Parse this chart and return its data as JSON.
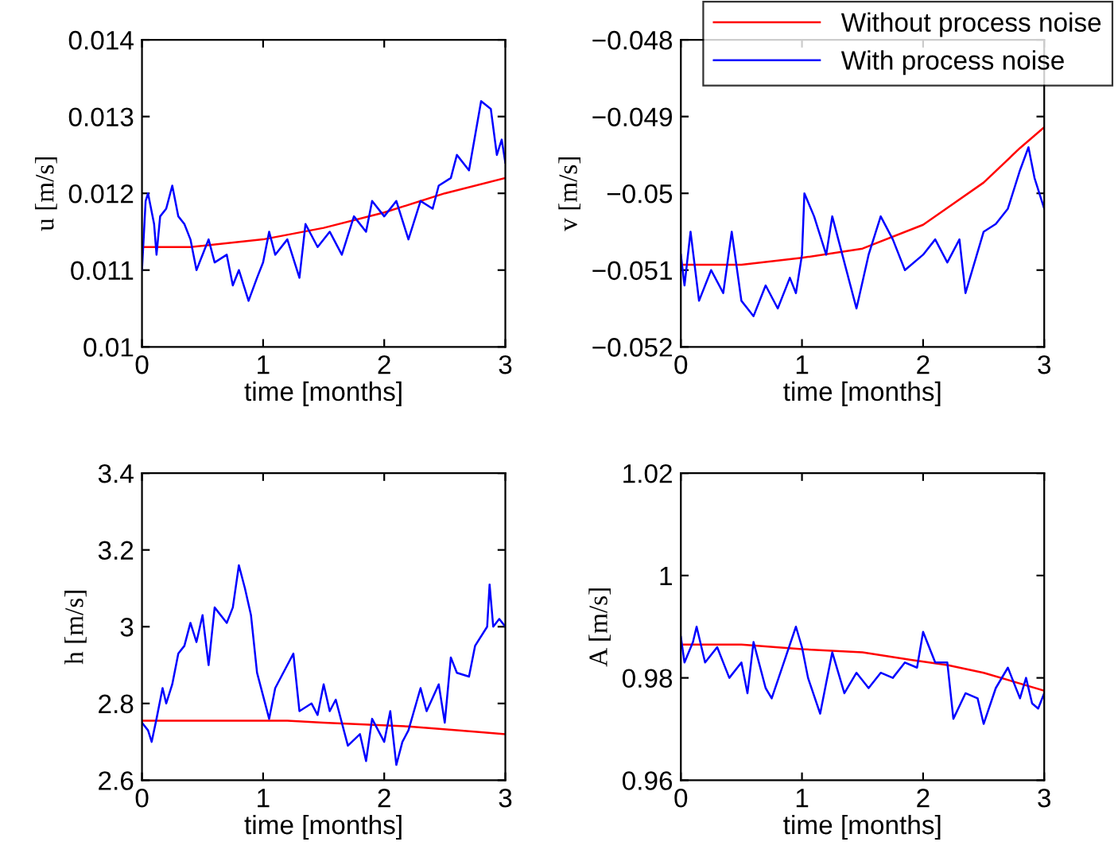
{
  "chart_data": [
    {
      "type": "line",
      "xlabel": "time [months]",
      "ylabel": "u [m/s]",
      "xlim": [
        0,
        3
      ],
      "xticks": [
        0,
        1,
        2,
        3
      ],
      "ylim": [
        0.01,
        0.014
      ],
      "yticks": [
        0.01,
        0.011,
        0.012,
        0.013,
        0.014
      ],
      "grid": false,
      "legend": false,
      "series": [
        {
          "color": "#ff0000",
          "x": [
            0,
            0.4,
            1.0,
            1.5,
            2.0,
            2.5,
            3.0
          ],
          "values": [
            0.0113,
            0.0113,
            0.0114,
            0.01155,
            0.01175,
            0.012,
            0.0122
          ]
        },
        {
          "color": "#0000ff",
          "x": [
            0,
            0.03,
            0.05,
            0.1,
            0.12,
            0.15,
            0.2,
            0.25,
            0.3,
            0.35,
            0.4,
            0.45,
            0.55,
            0.6,
            0.7,
            0.75,
            0.8,
            0.88,
            0.95,
            1.0,
            1.05,
            1.1,
            1.2,
            1.3,
            1.35,
            1.45,
            1.55,
            1.65,
            1.75,
            1.85,
            1.9,
            2.0,
            2.1,
            2.2,
            2.3,
            2.4,
            2.45,
            2.55,
            2.6,
            2.7,
            2.8,
            2.88,
            2.93,
            2.97,
            3.0
          ],
          "values": [
            0.011,
            0.0119,
            0.012,
            0.0116,
            0.0112,
            0.0117,
            0.0118,
            0.0121,
            0.0117,
            0.0116,
            0.0114,
            0.011,
            0.0114,
            0.0111,
            0.0112,
            0.0108,
            0.011,
            0.0106,
            0.0109,
            0.0111,
            0.0115,
            0.0112,
            0.0114,
            0.0109,
            0.0116,
            0.0113,
            0.0115,
            0.0112,
            0.0117,
            0.0115,
            0.0119,
            0.0117,
            0.0119,
            0.0114,
            0.0119,
            0.0118,
            0.0121,
            0.0122,
            0.0125,
            0.0123,
            0.0132,
            0.0131,
            0.0125,
            0.0127,
            0.0124
          ]
        }
      ]
    },
    {
      "type": "line",
      "xlabel": "time [months]",
      "ylabel": "v [m/s]",
      "xlim": [
        0,
        3
      ],
      "xticks": [
        0,
        1,
        2,
        3
      ],
      "ylim": [
        -0.052,
        -0.048
      ],
      "yticks": [
        {
          "value": -0.052,
          "label": "−0.052"
        },
        {
          "value": -0.051,
          "label": "−0.051"
        },
        {
          "value": -0.05,
          "label": "−0.05"
        },
        {
          "value": -0.049,
          "label": "−0.049"
        },
        {
          "value": -0.048,
          "label": "−0.048"
        }
      ],
      "grid": false,
      "legend": "top right",
      "series": [
        {
          "name": "Without process noise",
          "color": "#ff0000",
          "x": [
            0,
            0.5,
            1.0,
            1.5,
            2.0,
            2.5,
            2.8,
            3.0
          ],
          "values": [
            -0.05093,
            -0.05093,
            -0.05084,
            -0.05072,
            -0.05041,
            -0.04986,
            -0.04941,
            -0.04914
          ]
        },
        {
          "name": "With process noise",
          "color": "#0000ff",
          "x": [
            0,
            0.03,
            0.08,
            0.15,
            0.25,
            0.35,
            0.42,
            0.5,
            0.55,
            0.6,
            0.7,
            0.8,
            0.9,
            0.95,
            1.0,
            1.02,
            1.1,
            1.2,
            1.25,
            1.35,
            1.45,
            1.55,
            1.65,
            1.75,
            1.85,
            2.0,
            2.1,
            2.2,
            2.3,
            2.35,
            2.5,
            2.6,
            2.7,
            2.8,
            2.87,
            2.92,
            3.0
          ],
          "values": [
            -0.0508,
            -0.0512,
            -0.0505,
            -0.0514,
            -0.051,
            -0.0513,
            -0.0505,
            -0.0514,
            -0.0515,
            -0.0516,
            -0.0512,
            -0.0515,
            -0.0511,
            -0.0513,
            -0.0508,
            -0.05,
            -0.0503,
            -0.0508,
            -0.0503,
            -0.0509,
            -0.0515,
            -0.0508,
            -0.0503,
            -0.0506,
            -0.051,
            -0.0508,
            -0.0506,
            -0.0509,
            -0.0506,
            -0.0513,
            -0.0505,
            -0.0504,
            -0.0502,
            -0.0497,
            -0.0494,
            -0.0498,
            -0.0502
          ]
        }
      ]
    },
    {
      "type": "line",
      "xlabel": "time [months]",
      "ylabel": "h [m/s]",
      "xlim": [
        0,
        3
      ],
      "xticks": [
        0,
        1,
        2,
        3
      ],
      "ylim": [
        2.6,
        3.4
      ],
      "yticks": [
        2.6,
        2.8,
        3,
        3.2,
        3.4
      ],
      "grid": false,
      "legend": false,
      "series": [
        {
          "color": "#ff0000",
          "x": [
            0,
            1.2,
            1.5,
            2.2,
            2.6,
            3.0
          ],
          "values": [
            2.755,
            2.755,
            2.75,
            2.74,
            2.73,
            2.72
          ]
        },
        {
          "color": "#0000ff",
          "x": [
            0,
            0.05,
            0.08,
            0.12,
            0.17,
            0.2,
            0.25,
            0.3,
            0.35,
            0.4,
            0.45,
            0.5,
            0.55,
            0.6,
            0.7,
            0.75,
            0.8,
            0.85,
            0.9,
            0.95,
            1.0,
            1.05,
            1.1,
            1.2,
            1.25,
            1.3,
            1.4,
            1.45,
            1.5,
            1.55,
            1.6,
            1.7,
            1.8,
            1.85,
            1.9,
            2.0,
            2.05,
            2.1,
            2.15,
            2.2,
            2.3,
            2.35,
            2.45,
            2.5,
            2.55,
            2.6,
            2.7,
            2.75,
            2.85,
            2.87,
            2.9,
            2.95,
            3.0
          ],
          "values": [
            2.75,
            2.73,
            2.7,
            2.76,
            2.84,
            2.8,
            2.85,
            2.93,
            2.95,
            3.01,
            2.96,
            3.03,
            2.9,
            3.05,
            3.01,
            3.05,
            3.16,
            3.1,
            3.03,
            2.88,
            2.82,
            2.76,
            2.84,
            2.9,
            2.93,
            2.78,
            2.8,
            2.77,
            2.85,
            2.78,
            2.81,
            2.69,
            2.72,
            2.65,
            2.76,
            2.7,
            2.78,
            2.64,
            2.7,
            2.73,
            2.84,
            2.78,
            2.85,
            2.75,
            2.92,
            2.88,
            2.87,
            2.95,
            3.0,
            3.11,
            3.0,
            3.02,
            3.0
          ]
        }
      ]
    },
    {
      "type": "line",
      "xlabel": "time [months]",
      "ylabel": "A [m/s]",
      "xlim": [
        0,
        3
      ],
      "xticks": [
        0,
        1,
        2,
        3
      ],
      "ylim": [
        0.96,
        1.02
      ],
      "yticks": [
        0.96,
        0.98,
        1,
        1.02
      ],
      "grid": false,
      "legend": false,
      "series": [
        {
          "color": "#ff0000",
          "x": [
            0,
            0.5,
            1.0,
            1.5,
            1.9,
            2.2,
            2.5,
            3.0
          ],
          "values": [
            0.9865,
            0.9865,
            0.9856,
            0.985,
            0.9835,
            0.9825,
            0.981,
            0.9775
          ]
        },
        {
          "color": "#0000ff",
          "x": [
            0,
            0.03,
            0.1,
            0.13,
            0.2,
            0.3,
            0.4,
            0.5,
            0.55,
            0.6,
            0.7,
            0.75,
            0.85,
            0.95,
            1.0,
            1.05,
            1.15,
            1.2,
            1.25,
            1.3,
            1.35,
            1.45,
            1.55,
            1.65,
            1.75,
            1.85,
            1.95,
            2.0,
            2.05,
            2.1,
            2.2,
            2.25,
            2.35,
            2.45,
            2.5,
            2.6,
            2.7,
            2.8,
            2.85,
            2.9,
            2.95,
            3.0
          ],
          "values": [
            0.988,
            0.983,
            0.987,
            0.99,
            0.983,
            0.986,
            0.98,
            0.983,
            0.977,
            0.987,
            0.978,
            0.976,
            0.983,
            0.99,
            0.986,
            0.98,
            0.973,
            0.979,
            0.985,
            0.981,
            0.977,
            0.981,
            0.978,
            0.981,
            0.98,
            0.983,
            0.982,
            0.989,
            0.986,
            0.983,
            0.983,
            0.972,
            0.977,
            0.976,
            0.971,
            0.978,
            0.982,
            0.976,
            0.98,
            0.975,
            0.974,
            0.977
          ]
        }
      ]
    }
  ]
}
